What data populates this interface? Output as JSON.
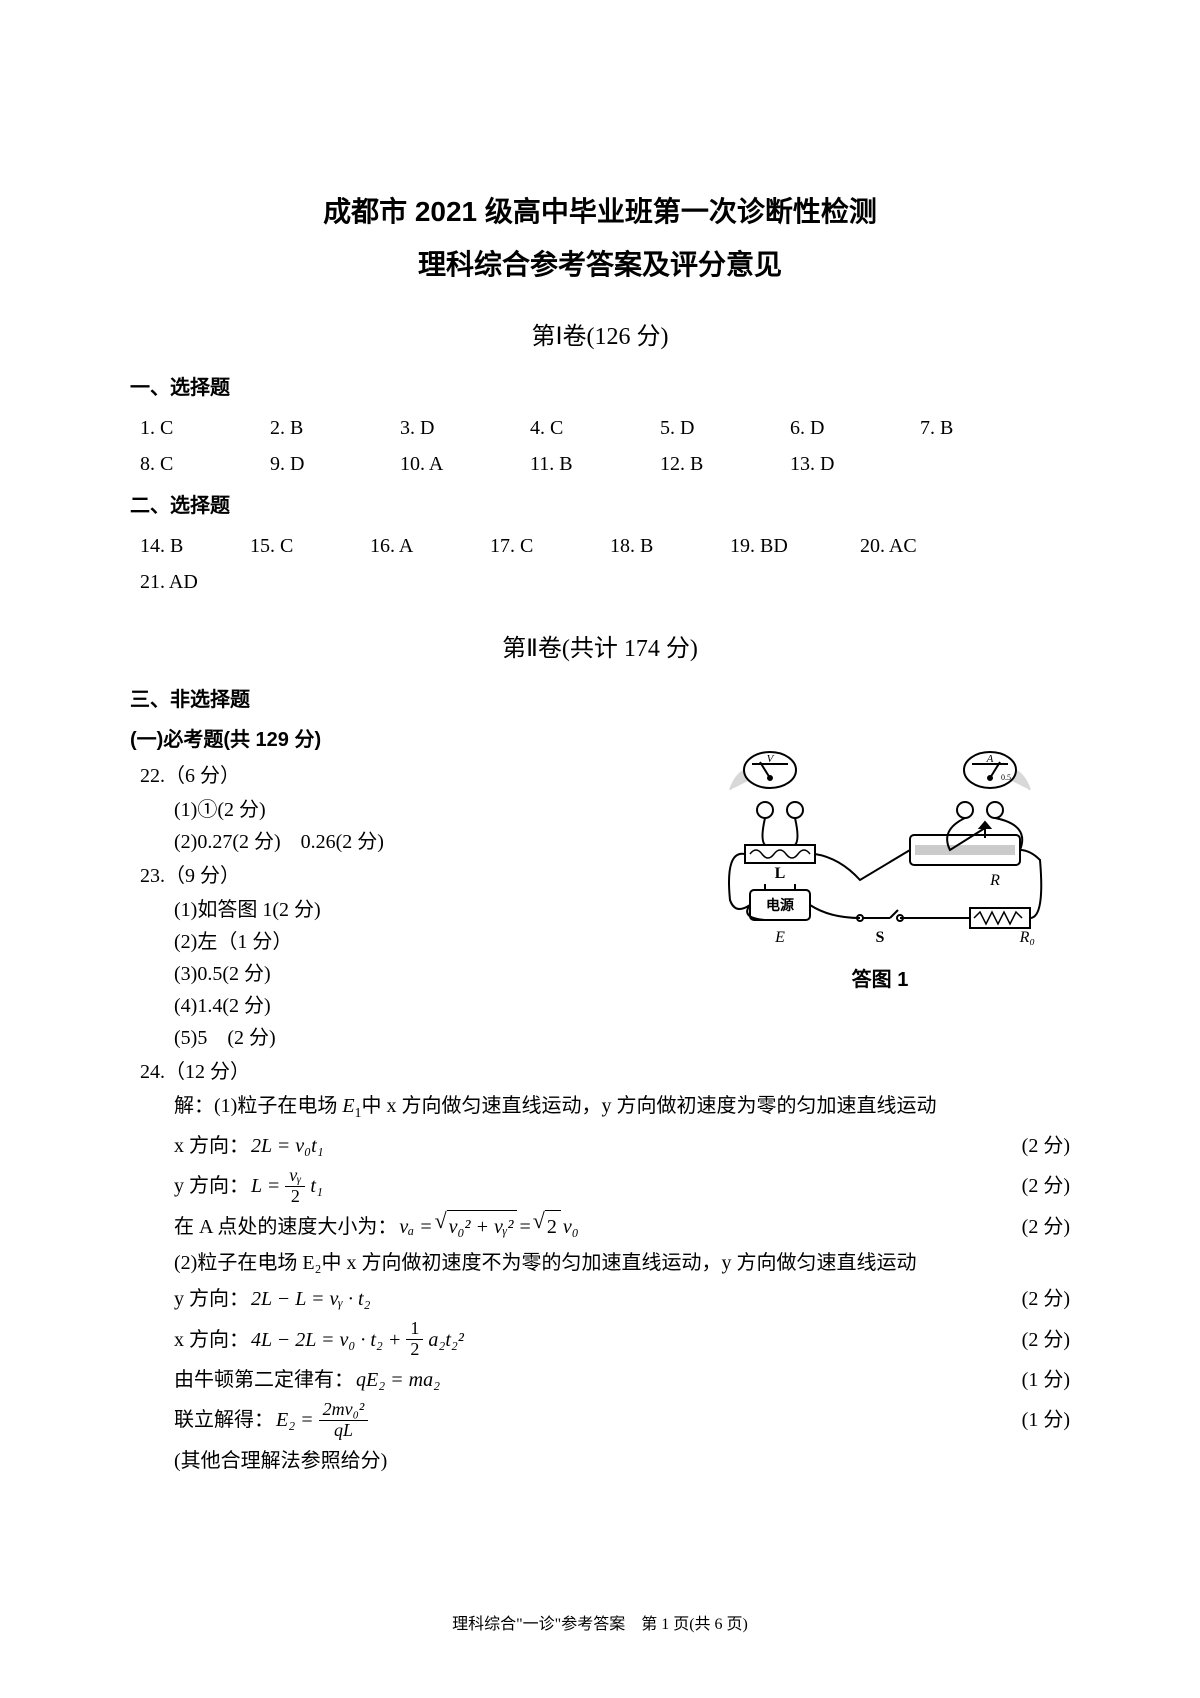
{
  "title1": "成都市 2021 级高中毕业班第一次诊断性检测",
  "title2": "理科综合参考答案及评分意见",
  "volume1": {
    "title": "第Ⅰ卷(126 分)"
  },
  "section1": {
    "heading": "一、选择题",
    "answers": [
      {
        "n": "1.",
        "a": "C"
      },
      {
        "n": "2.",
        "a": "B"
      },
      {
        "n": "3.",
        "a": "D"
      },
      {
        "n": "4.",
        "a": "C"
      },
      {
        "n": "5.",
        "a": "D"
      },
      {
        "n": "6.",
        "a": "D"
      },
      {
        "n": "7.",
        "a": "B"
      },
      {
        "n": "8.",
        "a": "C"
      },
      {
        "n": "9.",
        "a": "D"
      },
      {
        "n": "10.",
        "a": "A"
      },
      {
        "n": "11.",
        "a": "B"
      },
      {
        "n": "12.",
        "a": "B"
      },
      {
        "n": "13.",
        "a": "D"
      }
    ]
  },
  "section2": {
    "heading": "二、选择题",
    "answers": [
      {
        "n": "14.",
        "a": "B"
      },
      {
        "n": "15.",
        "a": "C"
      },
      {
        "n": "16.",
        "a": "A"
      },
      {
        "n": "17.",
        "a": "C"
      },
      {
        "n": "18.",
        "a": "B"
      },
      {
        "n": "19.",
        "a": "BD"
      },
      {
        "n": "20.",
        "a": "AC"
      },
      {
        "n": "21.",
        "a": "AD"
      }
    ]
  },
  "volume2": {
    "title": "第Ⅱ卷(共计 174 分)"
  },
  "section3": {
    "heading": "三、非选择题",
    "sub": "(一)必考题(共 129 分)"
  },
  "q22": {
    "head": "22.（6 分）",
    "l1": "(1)①(2 分)",
    "l2": "(2)0.27(2 分)　0.26(2 分)"
  },
  "q23": {
    "head": "23.（9 分）",
    "l1": "(1)如答图 1(2 分)",
    "l2": "(2)左（1 分）",
    "l3": "(3)0.5(2 分)",
    "l4": "(4)1.4(2 分)",
    "l5": "(5)5　(2 分)"
  },
  "figure": {
    "caption": "答图 1",
    "labels": {
      "L": "L",
      "R": "R",
      "E": "E",
      "S": "S",
      "R0": "R₀",
      "src": "电源",
      "V": "V",
      "A": "A",
      "a_scale": "0.5"
    }
  },
  "q24": {
    "head": "24.（12 分）",
    "sol_label": "解：",
    "l1_pre": "(1)粒子在电场 ",
    "l1_mid": "中 x 方向做匀速直线运动，y 方向做初速度为零的匀加速直线运动",
    "xline": {
      "label": "x 方向：",
      "eq": "2L = v₀t₁",
      "pts": "(2 分)"
    },
    "yline": {
      "label": "y 方向：",
      "eq_pre": "L = ",
      "frac_num": "vᵧ",
      "frac_den": "2",
      "eq_post": "t₁",
      "pts": "(2 分)"
    },
    "va": {
      "pre": "在 A 点处的速度大小为：",
      "eq_lhs": "vₐ = ",
      "rad_body": "v₀² + vᵧ²",
      "eq_mid": " = ",
      "rad2": "2",
      "eq_post": " v₀",
      "pts": "(2 分)"
    },
    "l2": "(2)粒子在电场 E₂中 x 方向做初速度不为零的匀加速直线运动，y 方向做匀速直线运动",
    "y2": {
      "label": "y 方向：",
      "eq": "2L − L = vᵧ · t₂",
      "pts": "(2 分)"
    },
    "x2": {
      "label": "x 方向：",
      "eq_pre": "4L − 2L = v₀ · t₂ + ",
      "frac_num": "1",
      "frac_den": "2",
      "eq_post": "a₂t₂²",
      "pts": "(2 分)"
    },
    "newton": {
      "label": "由牛顿第二定律有：",
      "eq": "qE₂ = ma₂",
      "pts": "(1 分)"
    },
    "final": {
      "label": "联立解得：",
      "eq_lhs": "E₂ = ",
      "frac_num": "2mv₀²",
      "frac_den": "qL",
      "pts": "(1 分)"
    },
    "note": "(其他合理解法参照给分)"
  },
  "footer": "理科综合\"一诊\"参考答案　第 1 页(共 6 页)"
}
